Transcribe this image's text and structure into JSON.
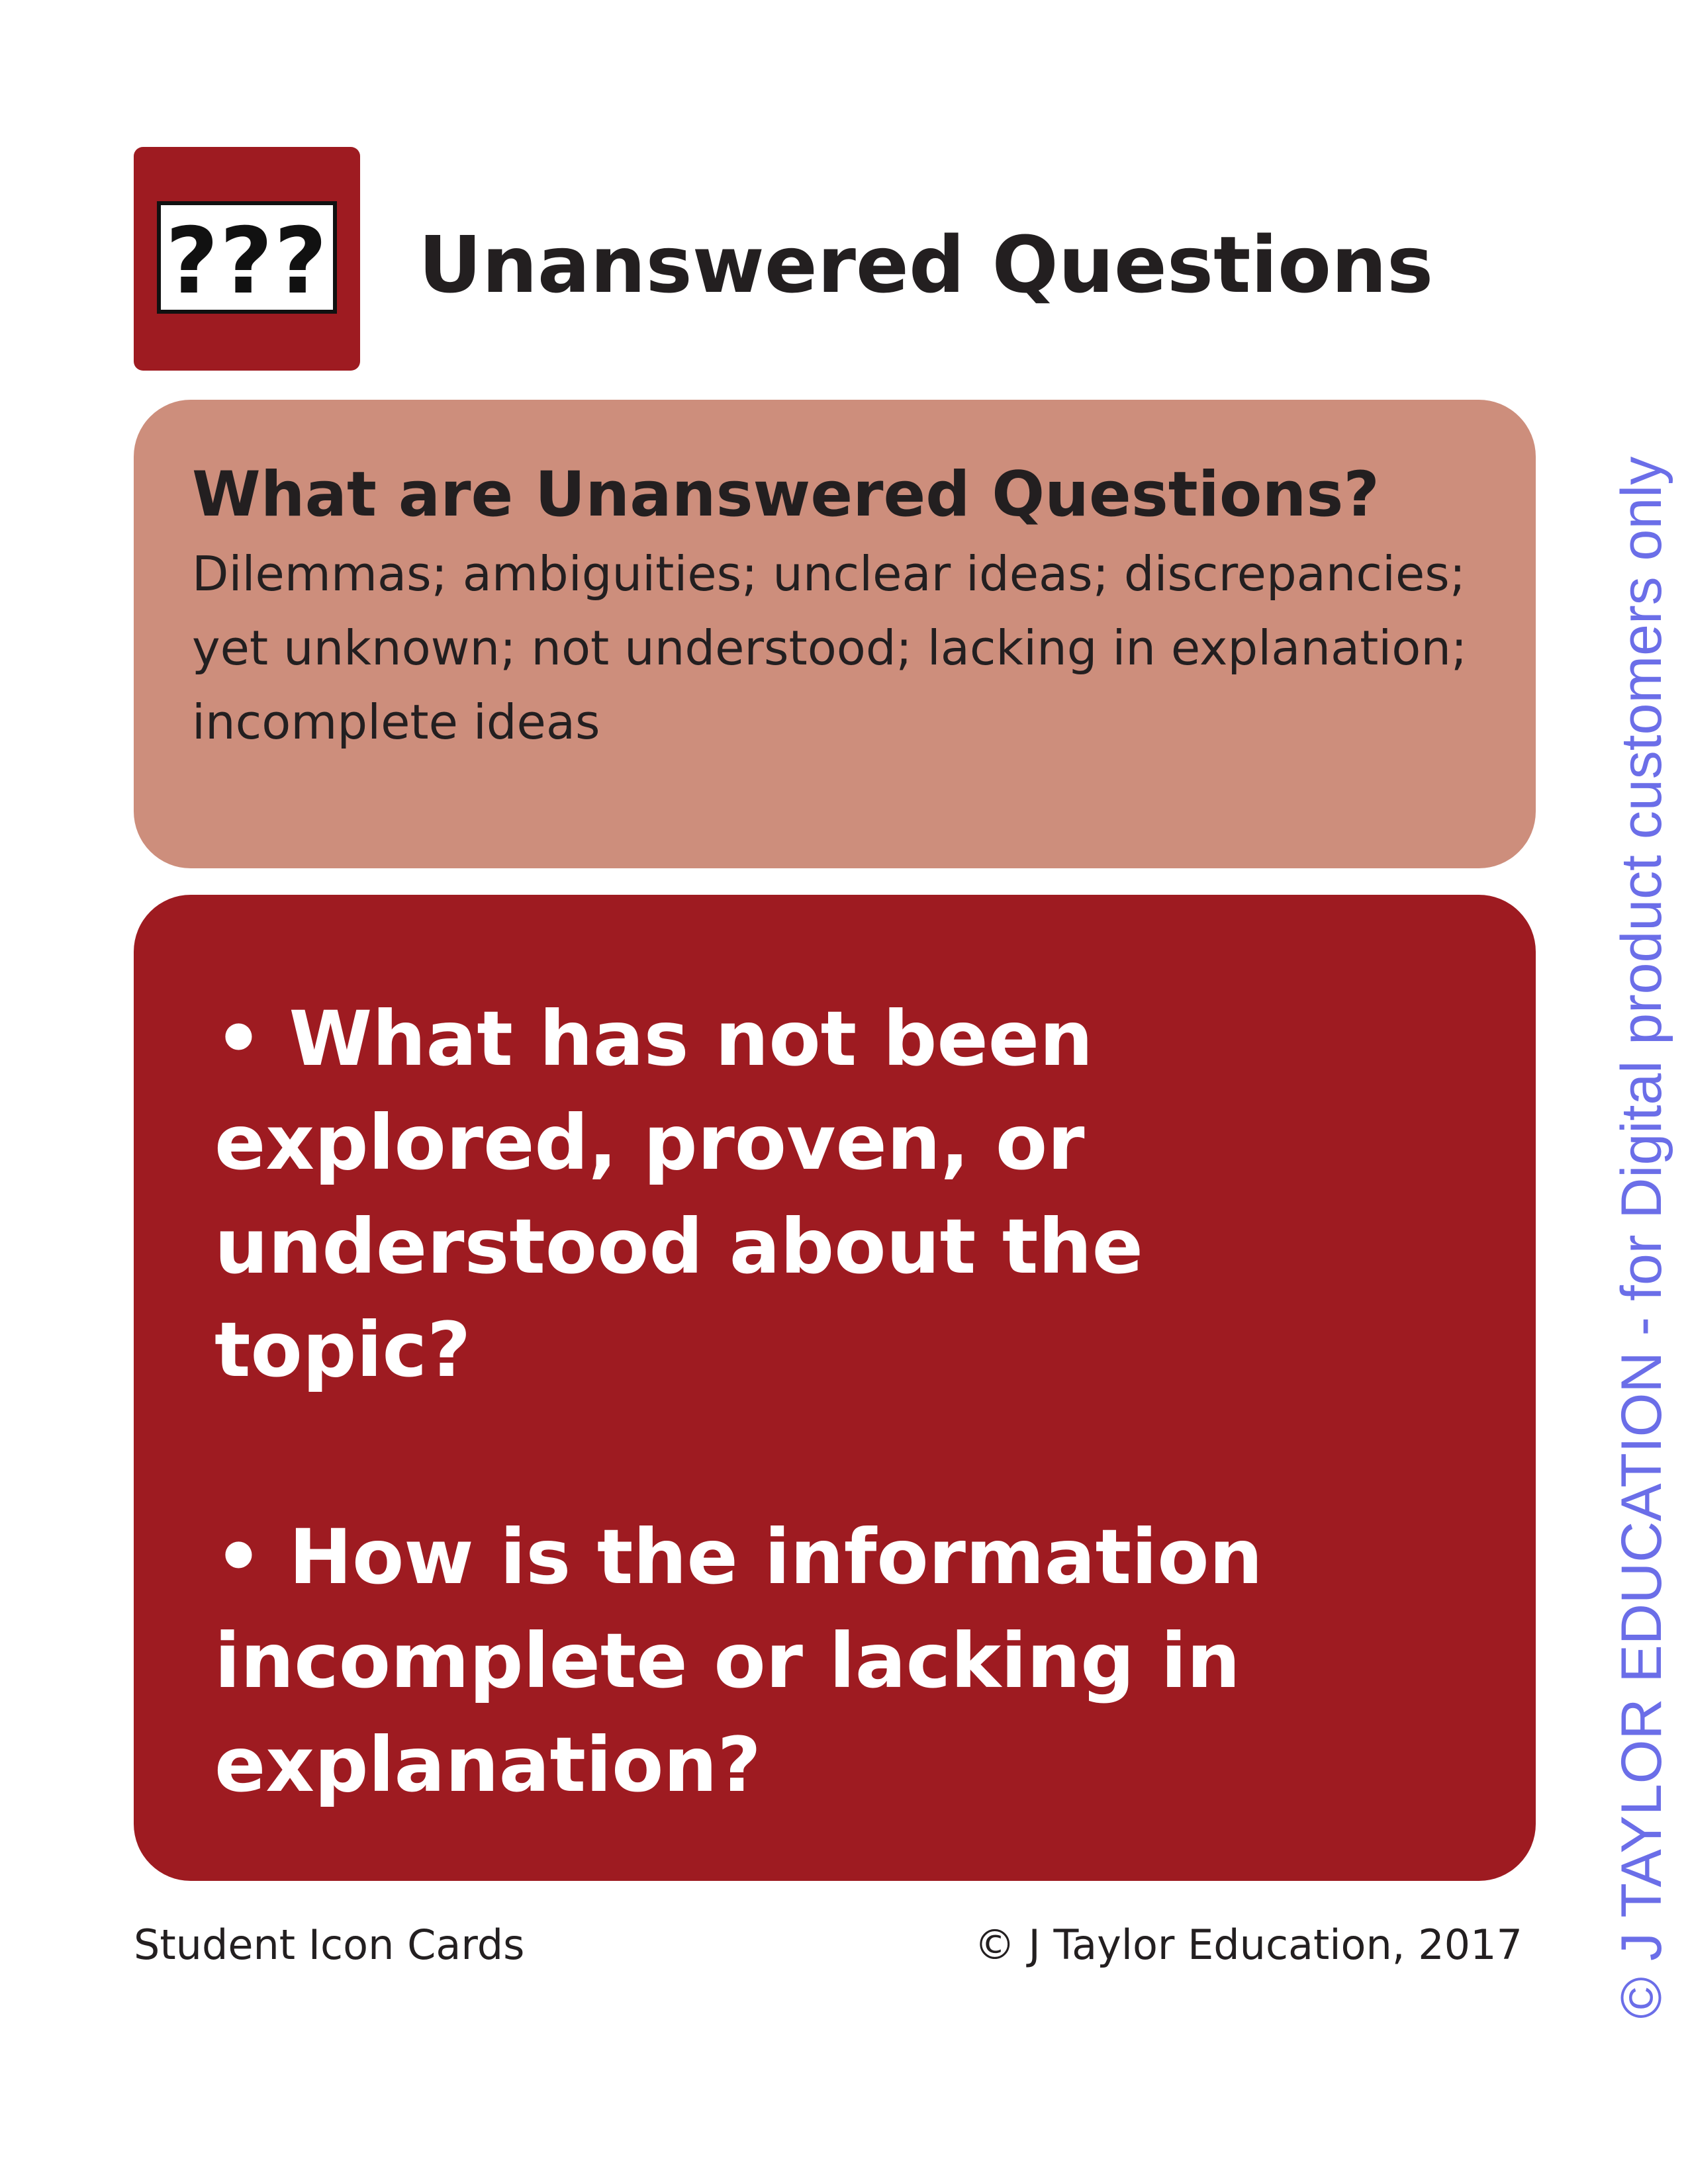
{
  "header": {
    "icon_glyph": "???",
    "icon_name": "question-marks-icon",
    "title": "Unanswered Questions"
  },
  "definition": {
    "heading": "What are Unanswered Questions?",
    "body": "Dilemmas; ambiguities; unclear ideas; discrepancies; yet unknown; not understood; lacking in explanation; incomplete ideas"
  },
  "questions": [
    "• What has not been explored, proven, or understood about the topic?",
    "• How is the information incomplete or lacking in explanation?"
  ],
  "footer": {
    "left": "Student Icon Cards",
    "right": "© J Taylor Education, 2017"
  },
  "watermark": "© J TAYLOR EDUCATION - for Digital product customers only",
  "colors": {
    "accent": "#9e1b21",
    "panel_light": "#cd8e7c",
    "text_dark": "#231f20",
    "watermark": "#6b6ee8"
  }
}
